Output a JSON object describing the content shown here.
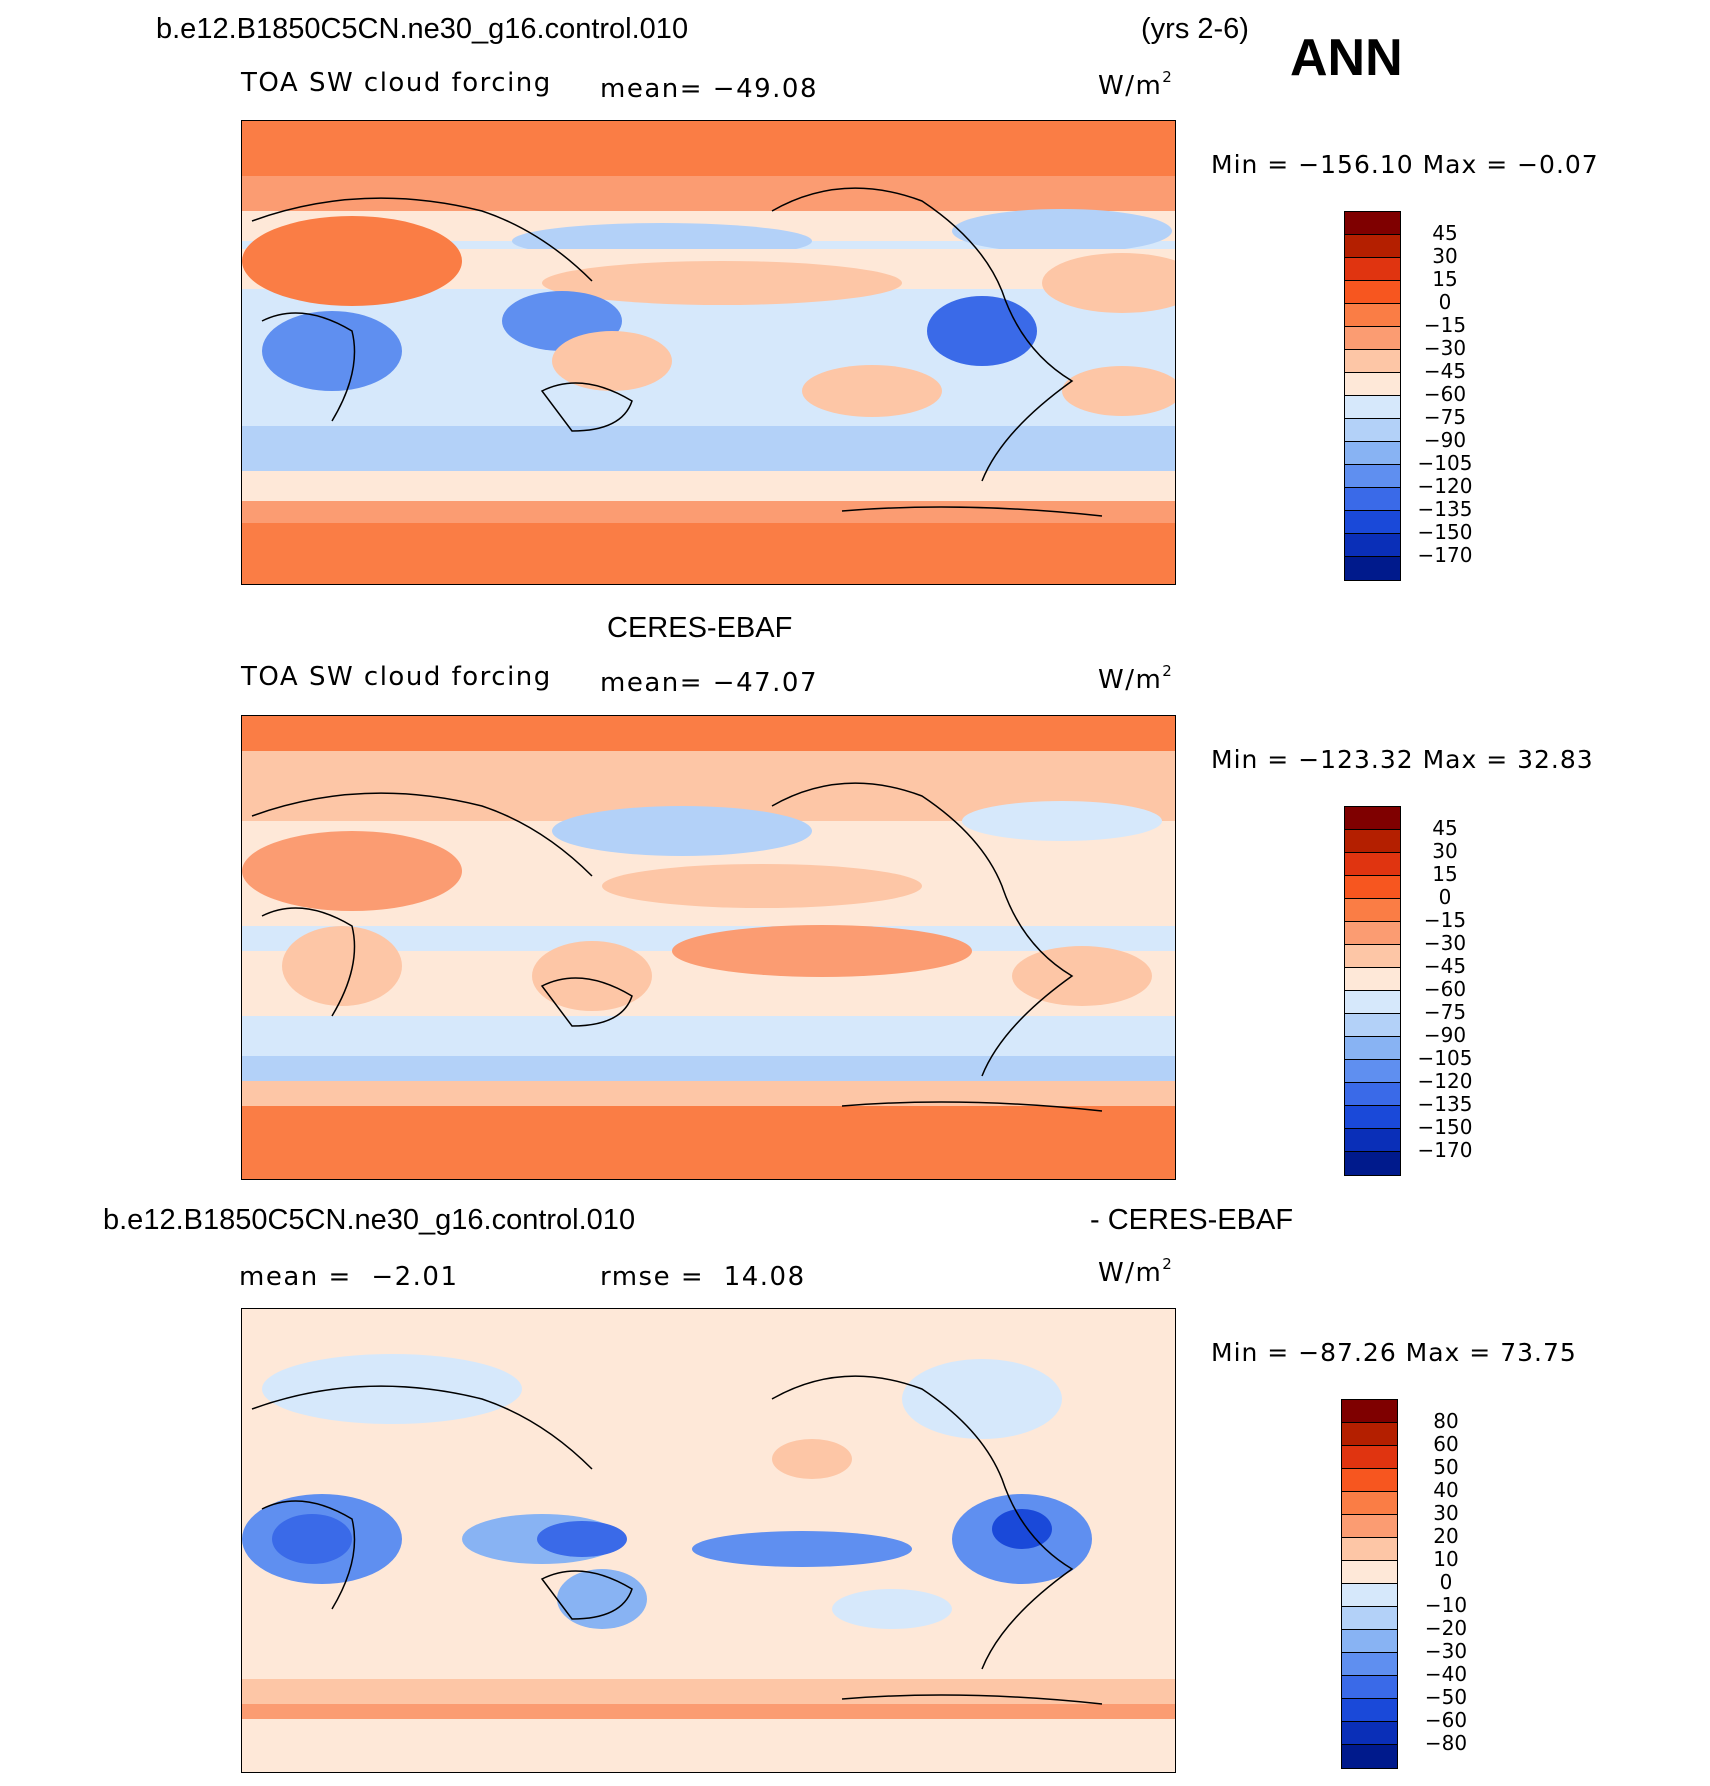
{
  "header": {
    "case_name": "b.e12.B1850C5CN.ne30_g16.control.010",
    "years": "(yrs 2-6)",
    "season": "ANN"
  },
  "panels": [
    {
      "id": "model",
      "title": "",
      "variable": "TOA SW cloud forcing",
      "mean_label": "mean=",
      "mean_value": "−49.08",
      "units": "W/m",
      "units_exp": "2",
      "minmax": "Min = −156.10 Max =  −0.07",
      "colorbar_labels": [
        "45",
        "30",
        "15",
        "0",
        "−15",
        "−30",
        "−45",
        "−60",
        "−75",
        "−90",
        "−105",
        "−120",
        "−135",
        "−150",
        "−170"
      ]
    },
    {
      "id": "obs",
      "title": "CERES-EBAF",
      "variable": "TOA SW cloud forcing",
      "mean_label": "mean=",
      "mean_value": "−47.07",
      "units": "W/m",
      "units_exp": "2",
      "minmax": "Min = −123.32 Max =  32.83",
      "colorbar_labels": [
        "45",
        "30",
        "15",
        "0",
        "−15",
        "−30",
        "−45",
        "−60",
        "−75",
        "−90",
        "−105",
        "−120",
        "−135",
        "−150",
        "−170"
      ]
    },
    {
      "id": "diff",
      "title_left": "b.e12.B1850C5CN.ne30_g16.control.010",
      "title_right": "- CERES-EBAF",
      "mean_label": "mean =",
      "mean_value": "−2.01",
      "rmse_label": "rmse =",
      "rmse_value": "14.08",
      "units": "W/m",
      "units_exp": "2",
      "minmax": "Min = −87.26 Max =  73.75",
      "colorbar_labels": [
        "80",
        "60",
        "50",
        "40",
        "30",
        "20",
        "10",
        "0",
        "−10",
        "−20",
        "−30",
        "−40",
        "−50",
        "−60",
        "−80"
      ]
    }
  ],
  "colors": {
    "scale": [
      "#7f0000",
      "#b41f00",
      "#e03410",
      "#f7561f",
      "#fa7d45",
      "#fb9c72",
      "#fdc6a6",
      "#fee8d8",
      "#d6e8fb",
      "#b3d1f8",
      "#88b3f3",
      "#5f8ff0",
      "#3a6ae8",
      "#1a49d9",
      "#0a2fb8",
      "#001a8c"
    ]
  }
}
